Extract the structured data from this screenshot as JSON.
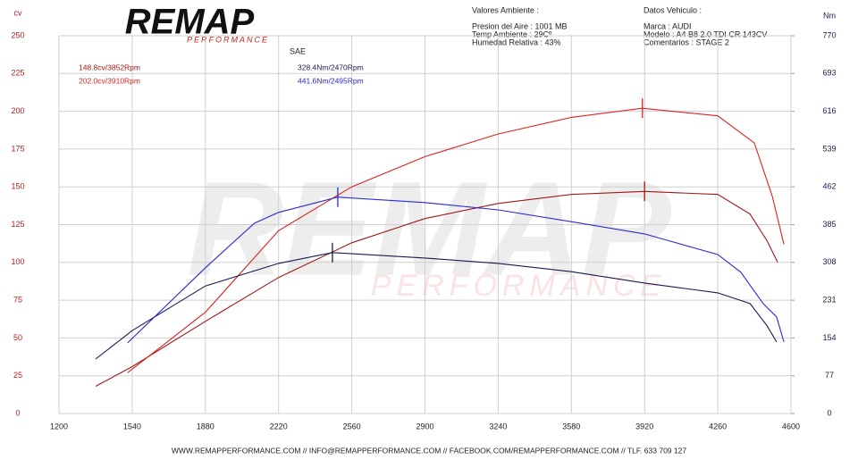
{
  "header": {
    "logo": "REMAP",
    "logo_sub": "PERFORMANCE",
    "ambient_title": "Valores Ambiente :",
    "ambient": [
      "Presion del Aire : 1001 MB",
      "Temp Ambiente : 29Cº",
      "Humedad Relativa : 43%"
    ],
    "vehicle_title": "Datos Vehiculo :",
    "vehicle": [
      "Marca : AUDI",
      "Modelo : A4 B8 2.0 TDI CR 143CV",
      "Comentarios : STAGE 2"
    ]
  },
  "footer": "WWW.REMAPPERFORMANCE.COM  // INFO@REMAPPERFORMANCE.COM  //  FACEBOOK.COM/REMAPPERFORMANCE.COM  //  TLF. 633 709 127",
  "chart_data": {
    "type": "line",
    "subtitle": "SAE",
    "y_label": "cv",
    "y2_label": "Nm",
    "xlim": [
      1200,
      4600
    ],
    "xticks": [
      1200,
      1540,
      1880,
      2220,
      2560,
      2900,
      3240,
      3580,
      3920,
      4260,
      4600
    ],
    "ylim": [
      0,
      250
    ],
    "yticks": [
      0,
      25,
      50,
      75,
      100,
      125,
      150,
      175,
      200,
      225,
      250
    ],
    "y2lim": [
      0,
      770
    ],
    "y2ticks": [
      0,
      77,
      154,
      231,
      308,
      385,
      462,
      539,
      616,
      693,
      770
    ],
    "grid": true,
    "series": [
      {
        "label": "148.8cv/3852Rpm",
        "color": "#a01818",
        "x": [
          1370,
          1540,
          1880,
          2220,
          2560,
          2900,
          3240,
          3580,
          3920,
          4260,
          4410,
          4490,
          4538
        ],
        "values": [
          18,
          31,
          61,
          90,
          113,
          129,
          139,
          145,
          147,
          145,
          132,
          114,
          100
        ]
      },
      {
        "label": "202.0cv/3910Rpm",
        "color": "#e02020",
        "x": [
          1519,
          1880,
          2220,
          2560,
          2900,
          3240,
          3580,
          3910,
          4260,
          4430,
          4513,
          4567
        ],
        "values": [
          27,
          67,
          121,
          150,
          170,
          185,
          196,
          202,
          197,
          179,
          144,
          112
        ]
      },
      {
        "label": "328.4Nm/2470Rpm",
        "color": "#1a1a50",
        "axis": "y2",
        "x": [
          1370,
          1540,
          1880,
          2220,
          2470,
          2900,
          3240,
          3580,
          3920,
          4260,
          4410,
          4490,
          4533
        ],
        "values": [
          111,
          169,
          260,
          306,
          328,
          317,
          306,
          289,
          266,
          246,
          224,
          178,
          146
        ]
      },
      {
        "label": "441.6Nm/2495Rpm",
        "color": "#2a2ad0",
        "axis": "y2",
        "x": [
          1519,
          1880,
          2108,
          2220,
          2495,
          2900,
          3240,
          3580,
          3920,
          4260,
          4367,
          4471,
          4533,
          4567
        ],
        "values": [
          144,
          297,
          388,
          410,
          441,
          430,
          415,
          391,
          366,
          324,
          288,
          224,
          197,
          146
        ]
      }
    ]
  }
}
